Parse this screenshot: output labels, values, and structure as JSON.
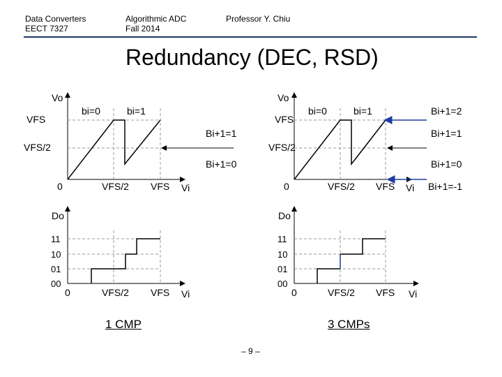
{
  "header": {
    "course": "Data Converters",
    "course_code": "EECT 7327",
    "topic": "Algorithmic ADC",
    "term": "Fall 2014",
    "instructor": "Professor Y. Chiu"
  },
  "title": "Redundancy (DEC, RSD)",
  "left": {
    "top_plot": {
      "y_axis": "Vo",
      "vfs": "VFS",
      "vfs_half": "VFS/2",
      "origin": "0",
      "x_half": "VFS/2",
      "x_full": "VFS",
      "x_axis": "Vi",
      "bit0": "bi=0",
      "bit1": "bi=1",
      "next1": "Bi+1=1",
      "next0": "Bi+1=0"
    },
    "bottom_plot": {
      "y_axis": "Do",
      "codes": [
        "11",
        "10",
        "01",
        "00"
      ],
      "origin": "0",
      "x_half": "VFS/2",
      "x_full": "VFS",
      "x_axis": "Vi"
    },
    "caption": "1 CMP"
  },
  "right": {
    "top_plot": {
      "y_axis": "Vo",
      "vfs": "VFS",
      "vfs_half": "VFS/2",
      "origin": "0",
      "x_half": "VFS/2",
      "x_full": "VFS",
      "x_axis": "Vi",
      "bit0": "bi=0",
      "bit1": "bi=1",
      "next2": "Bi+1=2",
      "next1": "Bi+1=1",
      "next0": "Bi+1=0",
      "next_neg": "Bi+1=-1"
    },
    "bottom_plot": {
      "y_axis": "Do",
      "codes": [
        "11",
        "10",
        "01",
        "00"
      ],
      "origin": "0",
      "x_half": "VFS/2",
      "x_full": "VFS",
      "x_axis": "Vi"
    },
    "caption": "3 CMPs"
  },
  "page_number": "– 9 –",
  "colors": {
    "header_rule": "#1f3864",
    "accent_arrow": "#1f3fa0",
    "grid": "#999999"
  }
}
